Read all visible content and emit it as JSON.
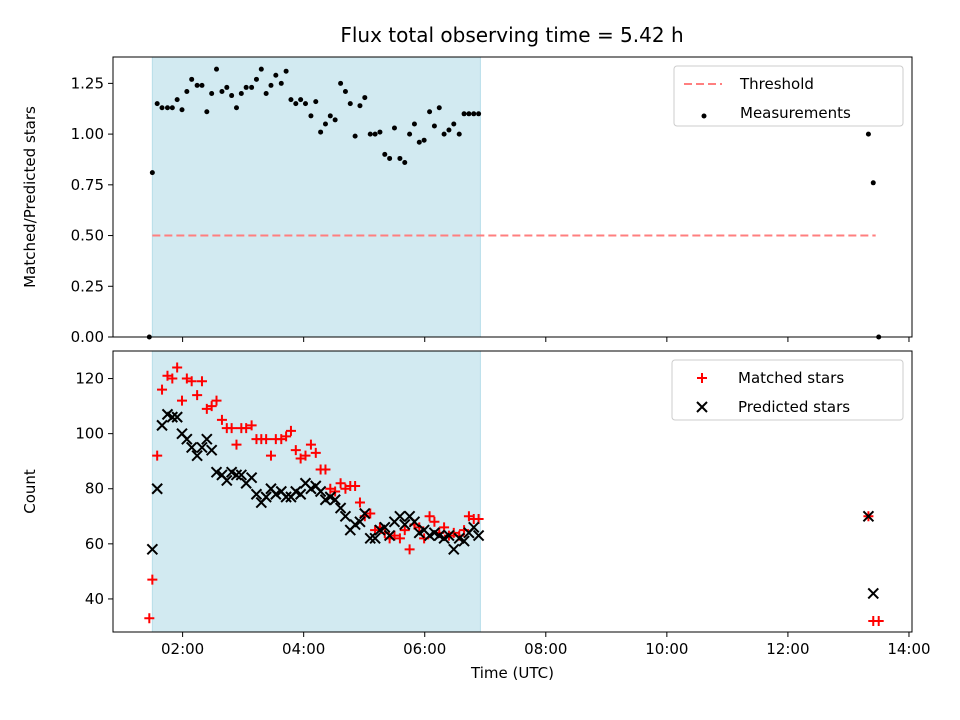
{
  "title": "Flux total observing time = 5.42 h",
  "colors": {
    "shade": "#add8e6",
    "threshold": "#ff7f7f",
    "measurements": "#000000",
    "matched": "#ff0000",
    "predicted": "#000000"
  },
  "chart_data": [
    {
      "type": "scatter",
      "panel": "top",
      "xlabel": "",
      "ylabel": "Matched/Predicted stars",
      "xlim": [
        0.85,
        14.05
      ],
      "ylim": [
        0.0,
        1.38
      ],
      "xticks": [
        2,
        4,
        6,
        8,
        10,
        12,
        14
      ],
      "yticks": [
        0.0,
        0.25,
        0.5,
        0.75,
        1.0,
        1.25
      ],
      "ytick_labels": [
        "0.00",
        "0.25",
        "0.50",
        "0.75",
        "1.00",
        "1.25"
      ],
      "shaded_span": [
        1.5,
        6.92
      ],
      "legend_position": "top-right",
      "legend": [
        "Threshold",
        "Measurements"
      ],
      "series": [
        {
          "name": "Threshold",
          "type": "line",
          "style": "dashed",
          "x": [
            1.5,
            13.45
          ],
          "y": [
            0.5,
            0.5
          ]
        },
        {
          "name": "Measurements",
          "type": "scatter",
          "marker": "dot",
          "x": [
            1.45,
            1.5,
            1.58,
            1.66,
            1.75,
            1.83,
            1.91,
            1.99,
            2.07,
            2.15,
            2.24,
            2.32,
            2.4,
            2.48,
            2.56,
            2.65,
            2.73,
            2.81,
            2.89,
            2.97,
            3.05,
            3.14,
            3.22,
            3.3,
            3.38,
            3.46,
            3.54,
            3.63,
            3.71,
            3.79,
            3.87,
            3.95,
            4.03,
            4.12,
            4.2,
            4.28,
            4.36,
            4.44,
            4.52,
            4.61,
            4.69,
            4.77,
            4.85,
            4.93,
            5.01,
            5.1,
            5.18,
            5.26,
            5.34,
            5.42,
            5.5,
            5.59,
            5.67,
            5.75,
            5.83,
            5.91,
            5.99,
            6.08,
            6.16,
            6.24,
            6.32,
            6.4,
            6.48,
            6.57,
            6.65,
            6.73,
            6.81,
            6.89,
            13.33,
            13.41,
            13.5
          ],
          "y": [
            0.0,
            0.81,
            1.15,
            1.13,
            1.13,
            1.13,
            1.17,
            1.12,
            1.21,
            1.27,
            1.24,
            1.24,
            1.11,
            1.2,
            1.32,
            1.21,
            1.23,
            1.19,
            1.13,
            1.2,
            1.23,
            1.23,
            1.27,
            1.32,
            1.2,
            1.24,
            1.29,
            1.25,
            1.31,
            1.17,
            1.15,
            1.17,
            1.15,
            1.09,
            1.16,
            1.01,
            1.05,
            1.09,
            1.07,
            1.25,
            1.21,
            1.15,
            0.99,
            1.14,
            1.18,
            1.0,
            1.0,
            1.01,
            0.9,
            0.88,
            1.03,
            0.88,
            0.86,
            1.0,
            1.05,
            0.96,
            0.97,
            1.11,
            1.04,
            1.13,
            1.0,
            1.02,
            1.05,
            1.0,
            1.1,
            1.1,
            1.1,
            1.1,
            1.0,
            0.76,
            0.0
          ]
        }
      ]
    },
    {
      "type": "scatter",
      "panel": "bottom",
      "xlabel": "Time (UTC)",
      "ylabel": "Count",
      "xlim": [
        0.85,
        14.05
      ],
      "ylim": [
        28,
        130
      ],
      "xticks": [
        2,
        4,
        6,
        8,
        10,
        12,
        14
      ],
      "xtick_labels": [
        "02:00",
        "04:00",
        "06:00",
        "08:00",
        "10:00",
        "12:00",
        "14:00"
      ],
      "yticks": [
        40,
        60,
        80,
        100,
        120
      ],
      "ytick_labels": [
        "40",
        "60",
        "80",
        "100",
        "120"
      ],
      "shaded_span": [
        1.5,
        6.92
      ],
      "legend_position": "top-right",
      "legend": [
        "Matched stars",
        "Predicted stars"
      ],
      "series": [
        {
          "name": "Matched stars",
          "marker": "plus",
          "x": [
            1.45,
            1.5,
            1.58,
            1.66,
            1.75,
            1.83,
            1.91,
            1.99,
            2.07,
            2.15,
            2.24,
            2.32,
            2.4,
            2.48,
            2.56,
            2.65,
            2.73,
            2.81,
            2.89,
            2.97,
            3.05,
            3.14,
            3.22,
            3.3,
            3.38,
            3.46,
            3.54,
            3.63,
            3.71,
            3.79,
            3.87,
            3.95,
            4.03,
            4.12,
            4.2,
            4.28,
            4.36,
            4.44,
            4.52,
            4.61,
            4.69,
            4.77,
            4.85,
            4.93,
            5.01,
            5.1,
            5.18,
            5.26,
            5.34,
            5.42,
            5.5,
            5.59,
            5.67,
            5.75,
            5.83,
            5.91,
            5.99,
            6.08,
            6.16,
            6.24,
            6.32,
            6.4,
            6.48,
            6.57,
            6.65,
            6.73,
            6.81,
            6.89,
            13.33,
            13.41,
            13.5
          ],
          "y": [
            33,
            47,
            92,
            116,
            121,
            120,
            124,
            112,
            120,
            119,
            114,
            119,
            109,
            110,
            112,
            105,
            102,
            102,
            96,
            102,
            102,
            103,
            98,
            98,
            98,
            92,
            98,
            98,
            99,
            101,
            94,
            91,
            92,
            96,
            93,
            87,
            87,
            80,
            79,
            82,
            80,
            81,
            81,
            75,
            70,
            71,
            65,
            66,
            64,
            62,
            63,
            62,
            65,
            58,
            67,
            66,
            62,
            70,
            68,
            64,
            66,
            63,
            64,
            63,
            65,
            70,
            69,
            69,
            70,
            32,
            32
          ]
        },
        {
          "name": "Predicted stars",
          "marker": "x",
          "x": [
            1.5,
            1.58,
            1.66,
            1.75,
            1.83,
            1.91,
            1.99,
            2.07,
            2.15,
            2.24,
            2.32,
            2.4,
            2.48,
            2.56,
            2.65,
            2.73,
            2.81,
            2.89,
            2.97,
            3.05,
            3.14,
            3.22,
            3.3,
            3.38,
            3.46,
            3.54,
            3.63,
            3.71,
            3.79,
            3.87,
            3.95,
            4.03,
            4.12,
            4.2,
            4.28,
            4.36,
            4.44,
            4.52,
            4.61,
            4.69,
            4.77,
            4.85,
            4.93,
            5.01,
            5.1,
            5.18,
            5.26,
            5.34,
            5.42,
            5.5,
            5.59,
            5.67,
            5.75,
            5.83,
            5.91,
            5.99,
            6.08,
            6.16,
            6.24,
            6.32,
            6.4,
            6.48,
            6.57,
            6.65,
            6.73,
            6.81,
            6.89,
            13.33,
            13.41
          ],
          "y": [
            58,
            80,
            103,
            107,
            106,
            106,
            100,
            98,
            95,
            92,
            95,
            98,
            94,
            86,
            85,
            83,
            86,
            85,
            85,
            82,
            84,
            78,
            75,
            77,
            80,
            78,
            79,
            77,
            77,
            79,
            78,
            82,
            80,
            81,
            79,
            76,
            77,
            76,
            73,
            70,
            65,
            67,
            68,
            71,
            62,
            62,
            65,
            66,
            63,
            68,
            70,
            67,
            70,
            68,
            64,
            65,
            63,
            64,
            63,
            62,
            63,
            58,
            62,
            61,
            64,
            66,
            63,
            70,
            42
          ]
        }
      ]
    }
  ]
}
